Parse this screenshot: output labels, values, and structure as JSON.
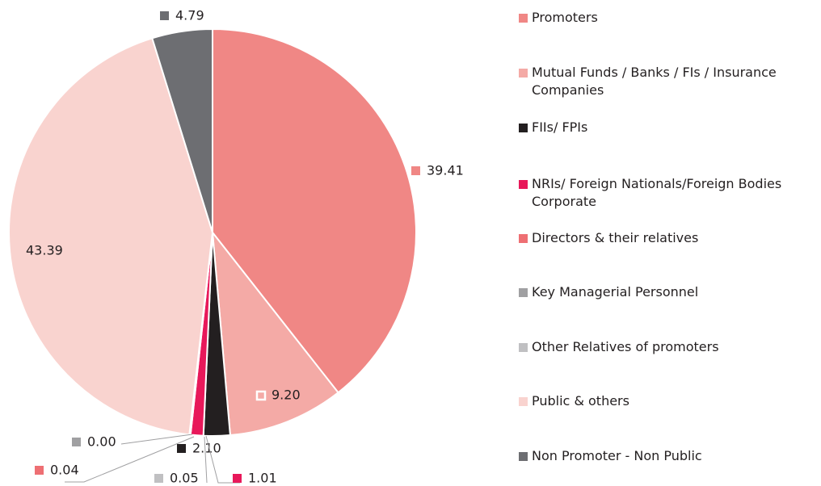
{
  "chart_data": {
    "type": "pie",
    "categories": [
      "Promoters",
      "Mutual Funds / Banks / FIs / Insurance Companies",
      "FIIs/ FPIs",
      "NRIs/ Foreign Nationals/Foreign Bodies Corporate",
      "Directors & their relatives",
      "Key Managerial Personnel",
      "Other Relatives of promoters",
      "Public & others",
      "Non Promoter - Non Public"
    ],
    "values": [
      39.41,
      9.2,
      2.1,
      1.01,
      0.04,
      0.0,
      0.05,
      43.39,
      4.79
    ],
    "value_labels": [
      "39.41",
      "9.20",
      "2.10",
      "1.01",
      "0.04",
      "0.00",
      "0.05",
      "43.39",
      "4.79"
    ],
    "colors": [
      "#f08785",
      "#f4aaa6",
      "#231f20",
      "#e8185a",
      "#ee6f73",
      "#a0a0a2",
      "#c0c0c2",
      "#f9d3cf",
      "#6d6e72"
    ]
  }
}
